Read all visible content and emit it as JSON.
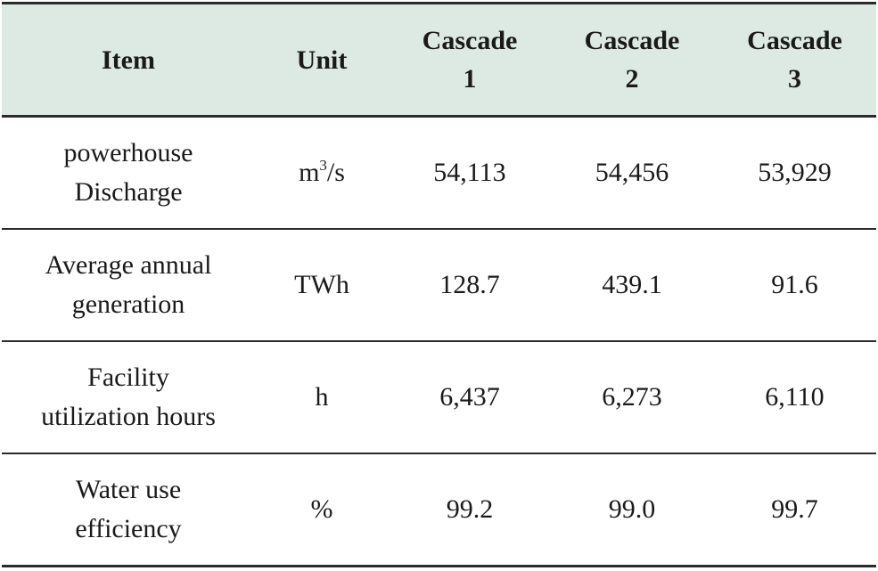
{
  "table": {
    "headers": {
      "item": "Item",
      "unit": "Unit",
      "cascade1": [
        "Cascade",
        "1"
      ],
      "cascade2": [
        "Cascade",
        "2"
      ],
      "cascade3": [
        "Cascade",
        "3"
      ]
    },
    "rows": [
      {
        "item": [
          "powerhouse",
          "Discharge"
        ],
        "unit": {
          "base": "m",
          "sup": "3",
          "suffix": "/s"
        },
        "values": [
          "54,113",
          "54,456",
          "53,929"
        ]
      },
      {
        "item": [
          "Average annual",
          "generation"
        ],
        "unit": "TWh",
        "values": [
          "128.7",
          "439.1",
          "91.6"
        ]
      },
      {
        "item": [
          "Facility",
          "utilization hours"
        ],
        "unit": "h",
        "values": [
          "6,437",
          "6,273",
          "6,110"
        ]
      },
      {
        "item": [
          "Water use",
          "efficiency"
        ],
        "unit": "%",
        "values": [
          "99.2",
          "99.0",
          "99.7"
        ]
      }
    ]
  }
}
